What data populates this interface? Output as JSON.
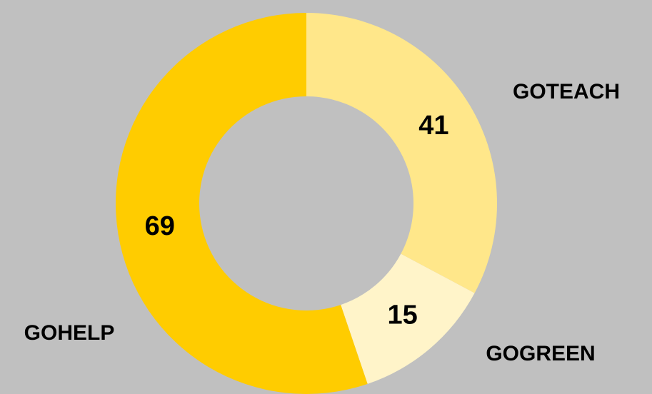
{
  "chart_data": {
    "type": "donut",
    "categories": [
      "GOTEACH",
      "GOGREEN",
      "GOHELP"
    ],
    "values": [
      41,
      15,
      69
    ],
    "colors": [
      "#ffe78a",
      "#fff4c9",
      "#ffcc00"
    ]
  }
}
